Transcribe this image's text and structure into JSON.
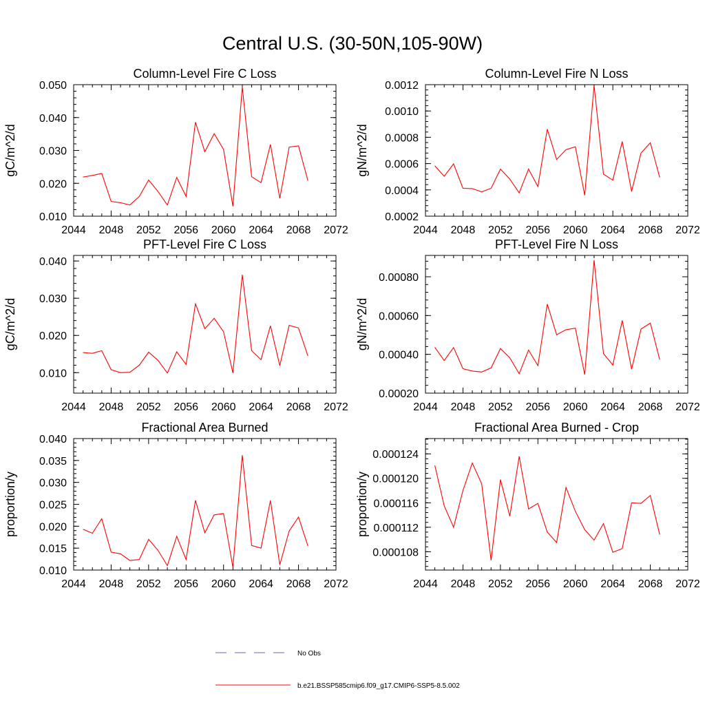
{
  "title": "Central U.S. (30-50N,105-90W)",
  "colors": {
    "model_line": "#ff0000",
    "obs_line": "#5b6ab5",
    "axis": "#000000"
  },
  "chart_data": [
    {
      "type": "line",
      "title": "Column-Level Fire C Loss",
      "xlabel": "",
      "ylabel": "gC/m^2/d",
      "xlim": [
        2044,
        2072
      ],
      "ylim": [
        0.01,
        0.05
      ],
      "xticks": [
        "2044",
        "2048",
        "2052",
        "2056",
        "2060",
        "2064",
        "2068",
        "2072"
      ],
      "yticks": [
        "0.010",
        "0.020",
        "0.030",
        "0.040",
        "0.050"
      ],
      "x": [
        2045,
        2046,
        2047,
        2048,
        2049,
        2050,
        2051,
        2052,
        2053,
        2054,
        2055,
        2056,
        2057,
        2058,
        2059,
        2060,
        2061,
        2062,
        2063,
        2064,
        2065,
        2066,
        2067,
        2068,
        2069
      ],
      "series": [
        {
          "values": [
            0.0219,
            0.0224,
            0.023,
            0.0145,
            0.0141,
            0.0134,
            0.016,
            0.021,
            0.0175,
            0.0134,
            0.0218,
            0.016,
            0.0386,
            0.0296,
            0.0351,
            0.0303,
            0.013,
            0.0493,
            0.022,
            0.0202,
            0.0318,
            0.0154,
            0.031,
            0.0314,
            0.0208
          ]
        }
      ]
    },
    {
      "type": "line",
      "title": "Column-Level Fire N Loss",
      "xlabel": "",
      "ylabel": "gN/m^2/d",
      "xlim": [
        2044,
        2072
      ],
      "ylim": [
        0.0002,
        0.0012
      ],
      "xticks": [
        "2044",
        "2048",
        "2052",
        "2056",
        "2060",
        "2064",
        "2068",
        "2072"
      ],
      "yticks": [
        "0.0002",
        "0.0004",
        "0.0006",
        "0.0008",
        "0.0010",
        "0.0012"
      ],
      "x": [
        2045,
        2046,
        2047,
        2048,
        2049,
        2050,
        2051,
        2052,
        2053,
        2054,
        2055,
        2056,
        2057,
        2058,
        2059,
        2060,
        2061,
        2062,
        2063,
        2064,
        2065,
        2066,
        2067,
        2068,
        2069
      ],
      "series": [
        {
          "values": [
            0.000583,
            0.000503,
            0.000598,
            0.000412,
            0.00041,
            0.000385,
            0.000412,
            0.000558,
            0.000482,
            0.000377,
            0.000558,
            0.000425,
            0.000862,
            0.000631,
            0.000706,
            0.000728,
            0.000359,
            0.001194,
            0.00052,
            0.000474,
            0.000768,
            0.000388,
            0.00068,
            0.000758,
            0.000495
          ]
        }
      ]
    },
    {
      "type": "line",
      "title": "PFT-Level Fire C Loss",
      "xlabel": "",
      "ylabel": "gC/m^2/d",
      "xlim": [
        2044,
        2072
      ],
      "ylim": [
        0.0045,
        0.0415
      ],
      "xticks": [
        "2044",
        "2048",
        "2052",
        "2056",
        "2060",
        "2064",
        "2068",
        "2072"
      ],
      "yticks": [
        "0.010",
        "0.020",
        "0.030",
        "0.040"
      ],
      "x": [
        2045,
        2046,
        2047,
        2048,
        2049,
        2050,
        2051,
        2052,
        2053,
        2054,
        2055,
        2056,
        2057,
        2058,
        2059,
        2060,
        2061,
        2062,
        2063,
        2064,
        2065,
        2066,
        2067,
        2068,
        2069
      ],
      "series": [
        {
          "values": [
            0.0154,
            0.0152,
            0.0159,
            0.0108,
            0.01,
            0.0101,
            0.012,
            0.0155,
            0.0133,
            0.0099,
            0.0156,
            0.0122,
            0.0285,
            0.0218,
            0.0246,
            0.021,
            0.0099,
            0.0363,
            0.0159,
            0.0135,
            0.0226,
            0.0119,
            0.0227,
            0.022,
            0.0145
          ]
        }
      ]
    },
    {
      "type": "line",
      "title": "PFT-Level Fire N Loss",
      "xlabel": "",
      "ylabel": "gN/m^2/d",
      "xlim": [
        2044,
        2072
      ],
      "ylim": [
        0.0002,
        0.00091
      ],
      "xticks": [
        "2044",
        "2048",
        "2052",
        "2056",
        "2060",
        "2064",
        "2068",
        "2072"
      ],
      "yticks": [
        "0.00020",
        "0.00040",
        "0.00060",
        "0.00080"
      ],
      "x": [
        2045,
        2046,
        2047,
        2048,
        2049,
        2050,
        2051,
        2052,
        2053,
        2054,
        2055,
        2056,
        2057,
        2058,
        2059,
        2060,
        2061,
        2062,
        2063,
        2064,
        2065,
        2066,
        2067,
        2068,
        2069
      ],
      "series": [
        {
          "values": [
            0.000436,
            0.000368,
            0.000435,
            0.000326,
            0.000314,
            0.000309,
            0.00033,
            0.00043,
            0.000382,
            0.0003,
            0.000422,
            0.000342,
            0.000659,
            0.000501,
            0.000527,
            0.000535,
            0.000295,
            0.000886,
            0.000404,
            0.000345,
            0.000575,
            0.000323,
            0.00053,
            0.000561,
            0.000373
          ]
        }
      ]
    },
    {
      "type": "line",
      "title": "Fractional Area Burned",
      "xlabel": "",
      "ylabel": "proportion/y",
      "xlim": [
        2044,
        2072
      ],
      "ylim": [
        0.01,
        0.04
      ],
      "xticks": [
        "2044",
        "2048",
        "2052",
        "2056",
        "2060",
        "2064",
        "2068",
        "2072"
      ],
      "yticks": [
        "0.010",
        "0.015",
        "0.020",
        "0.025",
        "0.030",
        "0.035",
        "0.040"
      ],
      "x": [
        2045,
        2046,
        2047,
        2048,
        2049,
        2050,
        2051,
        2052,
        2053,
        2054,
        2055,
        2056,
        2057,
        2058,
        2059,
        2060,
        2061,
        2062,
        2063,
        2064,
        2065,
        2066,
        2067,
        2068,
        2069
      ],
      "series": [
        {
          "values": [
            0.0193,
            0.0184,
            0.0217,
            0.0141,
            0.0137,
            0.0122,
            0.0124,
            0.017,
            0.0145,
            0.011,
            0.0177,
            0.0124,
            0.0259,
            0.0185,
            0.0226,
            0.0229,
            0.0106,
            0.0362,
            0.0156,
            0.015,
            0.0259,
            0.0112,
            0.0189,
            0.0221,
            0.0155
          ]
        }
      ]
    },
    {
      "type": "line",
      "title": "Fractional Area Burned - Crop",
      "xlabel": "",
      "ylabel": "proportion/y",
      "xlim": [
        2044,
        2072
      ],
      "ylim": [
        0.000105,
        0.0001265
      ],
      "xticks": [
        "2044",
        "2048",
        "2052",
        "2056",
        "2060",
        "2064",
        "2068",
        "2072"
      ],
      "yticks": [
        "0.000108",
        "0.000112",
        "0.000116",
        "0.000120",
        "0.000124"
      ],
      "x": [
        2045,
        2046,
        2047,
        2048,
        2049,
        2050,
        2051,
        2052,
        2053,
        2054,
        2055,
        2056,
        2057,
        2058,
        2059,
        2060,
        2061,
        2062,
        2063,
        2064,
        2065,
        2066,
        2067,
        2068,
        2069
      ],
      "series": [
        {
          "values": [
            0.0001221,
            0.0001155,
            0.000112,
            0.000118,
            0.0001225,
            0.0001191,
            0.0001066,
            0.0001198,
            0.0001138,
            0.0001236,
            0.000115,
            0.0001159,
            0.0001112,
            0.0001095,
            0.0001185,
            0.0001146,
            0.0001116,
            0.0001099,
            0.0001126,
            0.0001079,
            0.0001085,
            0.000116,
            0.0001159,
            0.0001172,
            0.0001108
          ]
        }
      ]
    }
  ],
  "legend": {
    "items": [
      {
        "label": "No Obs",
        "style": "dashed",
        "color": "#5b6ab5"
      },
      {
        "label": "b.e21.BSSP585cmip6.f09_g17.CMIP6-SSP5-8.5.002",
        "style": "solid",
        "color": "#ff0000"
      }
    ]
  }
}
